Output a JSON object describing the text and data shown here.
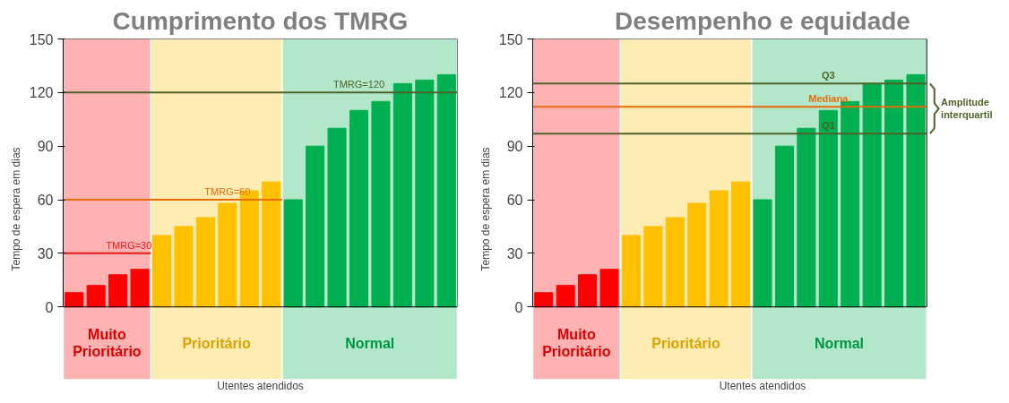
{
  "chart_data": [
    {
      "type": "bar",
      "title": "Cumprimento dos TMRG",
      "xlabel": "Utentes atendidos",
      "ylabel": "Tempo de espera em dias",
      "stacked": true,
      "categories": [
        null,
        null,
        null,
        null,
        null,
        null,
        null,
        null,
        null,
        null,
        null,
        null,
        null,
        null,
        null,
        null,
        null,
        null
      ],
      "series": [
        {
          "name": "Muito Prioritário",
          "color": "#ff0000",
          "values": [
            8,
            12,
            18,
            21,
            null,
            null,
            null,
            null,
            null,
            null,
            null,
            null,
            null,
            null,
            null,
            null,
            null,
            null
          ]
        },
        {
          "name": "Prioritário",
          "color": "#ffc000",
          "values": [
            null,
            null,
            null,
            null,
            40,
            45,
            50,
            58,
            65,
            70,
            null,
            null,
            null,
            null,
            null,
            null,
            null,
            null
          ]
        },
        {
          "name": "Normal",
          "color": "#00b050",
          "values": [
            null,
            null,
            null,
            null,
            null,
            null,
            null,
            null,
            null,
            null,
            60,
            90,
            100,
            110,
            115,
            125,
            127,
            130
          ]
        }
      ],
      "ylim": [
        0,
        150
      ],
      "yticks": [
        0,
        30,
        60,
        90,
        120,
        150
      ],
      "grid": false,
      "ref_lines": [
        {
          "axis": "y",
          "value": 30,
          "label": "TMRG=30",
          "color": "#e31a1c"
        },
        {
          "axis": "y",
          "value": 60,
          "label": "TMRG=60",
          "color": "#e46c0a"
        },
        {
          "axis": "y",
          "value": 120,
          "label": "TMRG=120",
          "color": "#4f6228"
        }
      ]
    },
    {
      "type": "bar",
      "title": "Desempenho e equidade",
      "xlabel": "Utentes atendidos",
      "ylabel": "Tempo de espera em dias",
      "stacked": true,
      "categories": [
        null,
        null,
        null,
        null,
        null,
        null,
        null,
        null,
        null,
        null,
        null,
        null,
        null,
        null,
        null,
        null,
        null,
        null
      ],
      "series": [
        {
          "name": "Muito Prioritário",
          "color": "#ff0000",
          "values": [
            8,
            12,
            18,
            21,
            null,
            null,
            null,
            null,
            null,
            null,
            null,
            null,
            null,
            null,
            null,
            null,
            null,
            null
          ]
        },
        {
          "name": "Prioritário",
          "color": "#ffc000",
          "values": [
            null,
            null,
            null,
            null,
            40,
            45,
            50,
            58,
            65,
            70,
            null,
            null,
            null,
            null,
            null,
            null,
            null,
            null
          ]
        },
        {
          "name": "Normal",
          "color": "#00b050",
          "values": [
            null,
            null,
            null,
            null,
            null,
            null,
            null,
            null,
            null,
            null,
            60,
            90,
            100,
            110,
            115,
            125,
            127,
            130
          ]
        }
      ],
      "ylim": [
        0,
        150
      ],
      "yticks": [
        0,
        30,
        60,
        90,
        120,
        150
      ],
      "grid": false,
      "ref_lines": [
        {
          "axis": "y",
          "value": 125,
          "label": "Q3",
          "color": "#4f6228"
        },
        {
          "axis": "y",
          "value": 112,
          "label": "Mediana",
          "color": "#e46c0a"
        },
        {
          "axis": "y",
          "value": 97,
          "label": "Q1",
          "color": "#4f6228"
        }
      ],
      "annotations": [
        "Amplitude interquartil"
      ]
    }
  ]
}
